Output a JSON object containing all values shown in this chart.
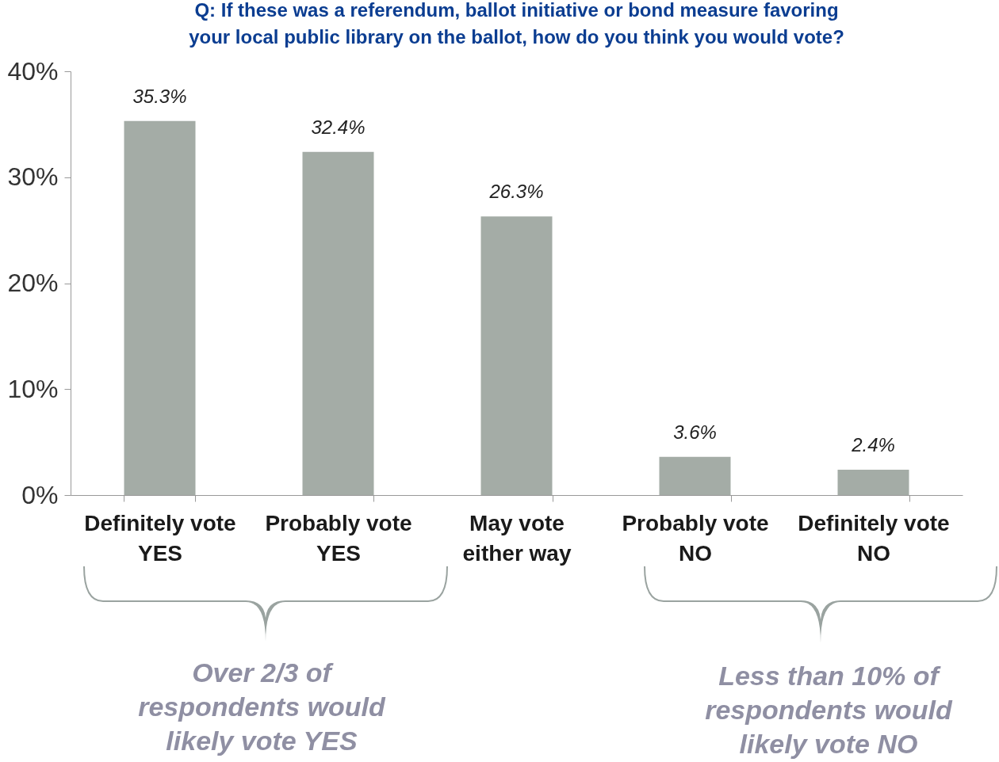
{
  "chart_data": {
    "type": "bar",
    "title": "Q:  If these was a referendum, ballot initiative or bond measure favoring\nyour local public library on the ballot, how do you think you would vote?",
    "categories": [
      "Definitely vote\nYES",
      "Probably vote\nYES",
      "May vote\neither way",
      "Probably vote\nNO",
      "Definitely vote\nNO"
    ],
    "values": [
      35.3,
      32.4,
      26.3,
      3.6,
      2.4
    ],
    "value_labels": [
      "35.3%",
      "32.4%",
      "26.3%",
      "3.6%",
      "2.4%"
    ],
    "color": "#a4aca6",
    "ylim": [
      0,
      40
    ],
    "yticks": [
      {
        "value": 0,
        "label": "0%"
      },
      {
        "value": 10,
        "label": "10%"
      },
      {
        "value": 20,
        "label": "20%"
      },
      {
        "value": 30,
        "label": "30%"
      },
      {
        "value": 40,
        "label": "40%"
      }
    ],
    "grid": false,
    "annotations": [
      "Over 2/3 of\nrespondents would\nlikely vote YES",
      "Less than 10% of\nrespondents would\nlikely vote NO"
    ]
  }
}
